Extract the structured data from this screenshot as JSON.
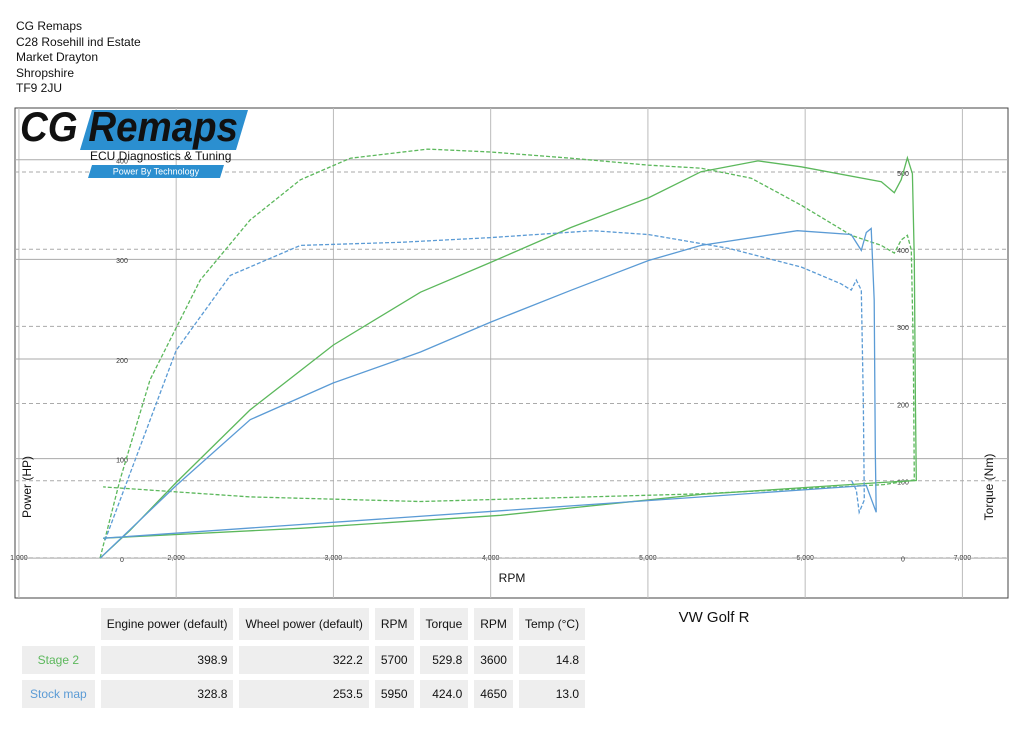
{
  "address": [
    "CG Remaps",
    "C28 Rosehill ind Estate",
    "Market Drayton",
    "Shropshire",
    "TF9 2JU"
  ],
  "logo": {
    "title": "CG Remaps",
    "subtitle": "ECU Diagnostics & Tuning",
    "tagline": "Power By Technology"
  },
  "chart_data": {
    "type": "line",
    "title": "VW Golf R",
    "x_label": "RPM",
    "y_label": "Power (HP)",
    "y2_label": "Torque (Nm)",
    "xlim": [
      975,
      7290
    ],
    "xticks": [
      {
        "value": 1000,
        "label": "1,000"
      },
      {
        "value": 2000,
        "label": "2,000"
      },
      {
        "value": 3000,
        "label": "3,000"
      },
      {
        "value": 4000,
        "label": "4,000"
      },
      {
        "value": 5000,
        "label": "5,000"
      },
      {
        "value": 6000,
        "label": "6,000"
      },
      {
        "value": 7000,
        "label": "7,000"
      }
    ],
    "ylim": [
      -40,
      452
    ],
    "yticks": [
      0,
      100,
      200,
      300,
      400
    ],
    "y2lim": [
      -52,
      583
    ],
    "y2ticks": [
      0,
      100,
      200,
      300,
      400,
      500
    ],
    "grid": true,
    "series": [
      {
        "color": "#5cb85c",
        "dashed": false,
        "x": [
          1516,
          1707,
          2000,
          2471,
          3000,
          3554,
          4000,
          4510,
          5006,
          5338,
          5700,
          5975,
          6484,
          6567,
          6611,
          6650,
          6682,
          6694,
          6701,
          6707,
          6484,
          5338,
          4064,
          2790,
          1535
        ],
        "values": [
          0,
          28,
          76,
          149,
          214,
          267,
          297,
          332,
          362,
          388,
          398.9,
          393,
          378,
          367,
          380,
          402,
          386,
          300,
          159,
          78,
          76,
          64,
          43,
          30,
          20
        ]
      },
      {
        "color": "#5cb85c",
        "dashed": true,
        "axis": "y2",
        "x": [
          1516,
          1643,
          1834,
          2153,
          2471,
          2790,
          3108,
          3600,
          4000,
          4510,
          5000,
          5338,
          5657,
          5975,
          6293,
          6484,
          6567,
          6611,
          6650,
          6675,
          6688,
          6694,
          6500,
          5338,
          3554,
          2471,
          1535
        ],
        "values": [
          0,
          101,
          231,
          360,
          438,
          490,
          518,
          529.8,
          526,
          518,
          509,
          505,
          492,
          457,
          418,
          405,
          395,
          412,
          418,
          399,
          270,
          101,
          95,
          83,
          73,
          79,
          92
        ]
      },
      {
        "color": "#5b9bd5",
        "dashed": false,
        "x": [
          1516,
          2000,
          2471,
          3000,
          3554,
          4000,
          4510,
          5006,
          5338,
          5950,
          6293,
          6357,
          6389,
          6420,
          6439,
          6446,
          6452,
          6389,
          1535
        ],
        "values": [
          0,
          73,
          139,
          176,
          207,
          237,
          269,
          299,
          314,
          328.8,
          325,
          309,
          327,
          331,
          259,
          108,
          46,
          73,
          20
        ]
      },
      {
        "color": "#5b9bd5",
        "dashed": true,
        "axis": "y2",
        "x": [
          1548,
          2000,
          2344,
          2790,
          3427,
          4000,
          4650,
          5006,
          5516,
          5975,
          6229,
          6293,
          6325,
          6357,
          6370,
          6376,
          6344,
          6325,
          6293
        ],
        "values": [
          23,
          269,
          366,
          405,
          409,
          415,
          424,
          419,
          401,
          377,
          355,
          347,
          360,
          347,
          205,
          75,
          59,
          88,
          101
        ]
      }
    ]
  },
  "table": {
    "columns": [
      "Engine power (default)",
      "Wheel power (default)",
      "RPM",
      "Torque",
      "RPM",
      "Temp (°C)"
    ],
    "rows": [
      {
        "label": "Stage 2",
        "color": "#5cb85c",
        "cells": [
          "398.9",
          "322.2",
          "5700",
          "529.8",
          "3600",
          "14.8"
        ]
      },
      {
        "label": "Stock map",
        "color": "#5b9bd5",
        "cells": [
          "328.8",
          "253.5",
          "5950",
          "424.0",
          "4650",
          "13.0"
        ]
      }
    ]
  }
}
